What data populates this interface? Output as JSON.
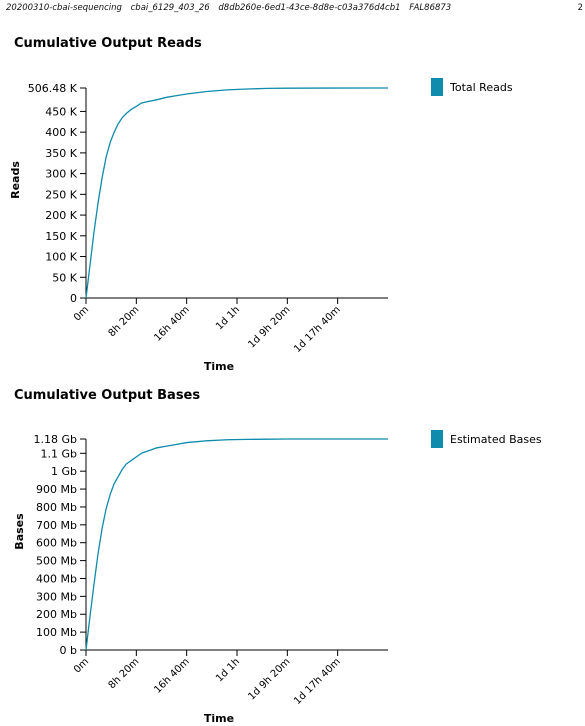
{
  "header": {
    "run_fields": [
      "20200310-cbai-sequencing",
      "cbai_6129_403_26",
      "d8db260e-6ed1-43ce-8d8e-c03a376d4cb1",
      "FAL86873"
    ],
    "page_number": "2"
  },
  "chart_data": [
    {
      "type": "line",
      "title": "Cumulative Output Reads",
      "xlabel": "Time",
      "ylabel": "Reads",
      "legend": "top-right",
      "grid": false,
      "y_tick_labels": [
        "0",
        "50 K",
        "100 K",
        "150 K",
        "200 K",
        "250 K",
        "300 K",
        "350 K",
        "400 K",
        "450 K",
        "506.48 K"
      ],
      "y_tick_values": [
        0,
        50000,
        100000,
        150000,
        200000,
        250000,
        300000,
        350000,
        400000,
        450000,
        506480
      ],
      "ylim": [
        0,
        506480
      ],
      "x_tick_labels": [
        "0m",
        "8h 20m",
        "16h 40m",
        "1d 1h",
        "1d 9h 20m",
        "1d 17h 40m"
      ],
      "x_tick_values": [
        0,
        500,
        1000,
        1500,
        2000,
        2500
      ],
      "xlim": [
        0,
        3000
      ],
      "x_unit": "minutes",
      "series": [
        {
          "name": "Total Reads",
          "color": "#0e8bad",
          "x": [
            0,
            40,
            80,
            120,
            160,
            200,
            240,
            280,
            320,
            360,
            400,
            450,
            500,
            550,
            600,
            700,
            800,
            900,
            1000,
            1100,
            1200,
            1400,
            1600,
            1800,
            2000,
            2400,
            2800,
            3000
          ],
          "y": [
            0,
            80000,
            160000,
            230000,
            290000,
            340000,
            375000,
            400000,
            420000,
            435000,
            445000,
            455000,
            462000,
            470000,
            473000,
            478000,
            484000,
            488000,
            492000,
            495000,
            498000,
            502000,
            504000,
            505500,
            506000,
            506300,
            506480,
            506480
          ]
        }
      ]
    },
    {
      "type": "line",
      "title": "Cumulative Output Bases",
      "xlabel": "Time",
      "ylabel": "Bases",
      "legend": "top-right",
      "grid": false,
      "y_tick_labels": [
        "0 b",
        "100 Mb",
        "200 Mb",
        "300 Mb",
        "400 Mb",
        "500 Mb",
        "600 Mb",
        "700 Mb",
        "800 Mb",
        "900 Mb",
        "1 Gb",
        "1.1 Gb",
        "1.18 Gb"
      ],
      "y_tick_values": [
        0,
        100,
        200,
        300,
        400,
        500,
        600,
        700,
        800,
        900,
        1000,
        1100,
        1180
      ],
      "ylim": [
        0,
        1180
      ],
      "y_unit": "Mb",
      "x_tick_labels": [
        "0m",
        "8h 20m",
        "16h 40m",
        "1d 1h",
        "1d 9h 20m",
        "1d 17h 40m"
      ],
      "x_tick_values": [
        0,
        500,
        1000,
        1500,
        2000,
        2500
      ],
      "xlim": [
        0,
        3000
      ],
      "x_unit": "minutes",
      "series": [
        {
          "name": "Estimated Bases",
          "color": "#0e8bad",
          "x": [
            0,
            40,
            80,
            120,
            160,
            200,
            240,
            280,
            320,
            360,
            400,
            450,
            500,
            550,
            600,
            700,
            800,
            900,
            1000,
            1100,
            1200,
            1400,
            1600,
            1800,
            2000,
            2400,
            2800,
            3000
          ],
          "y": [
            0,
            190,
            370,
            540,
            680,
            790,
            870,
            930,
            970,
            1010,
            1040,
            1060,
            1080,
            1100,
            1110,
            1130,
            1140,
            1150,
            1160,
            1165,
            1170,
            1176,
            1178,
            1179,
            1180,
            1180,
            1180,
            1180
          ]
        }
      ]
    }
  ]
}
